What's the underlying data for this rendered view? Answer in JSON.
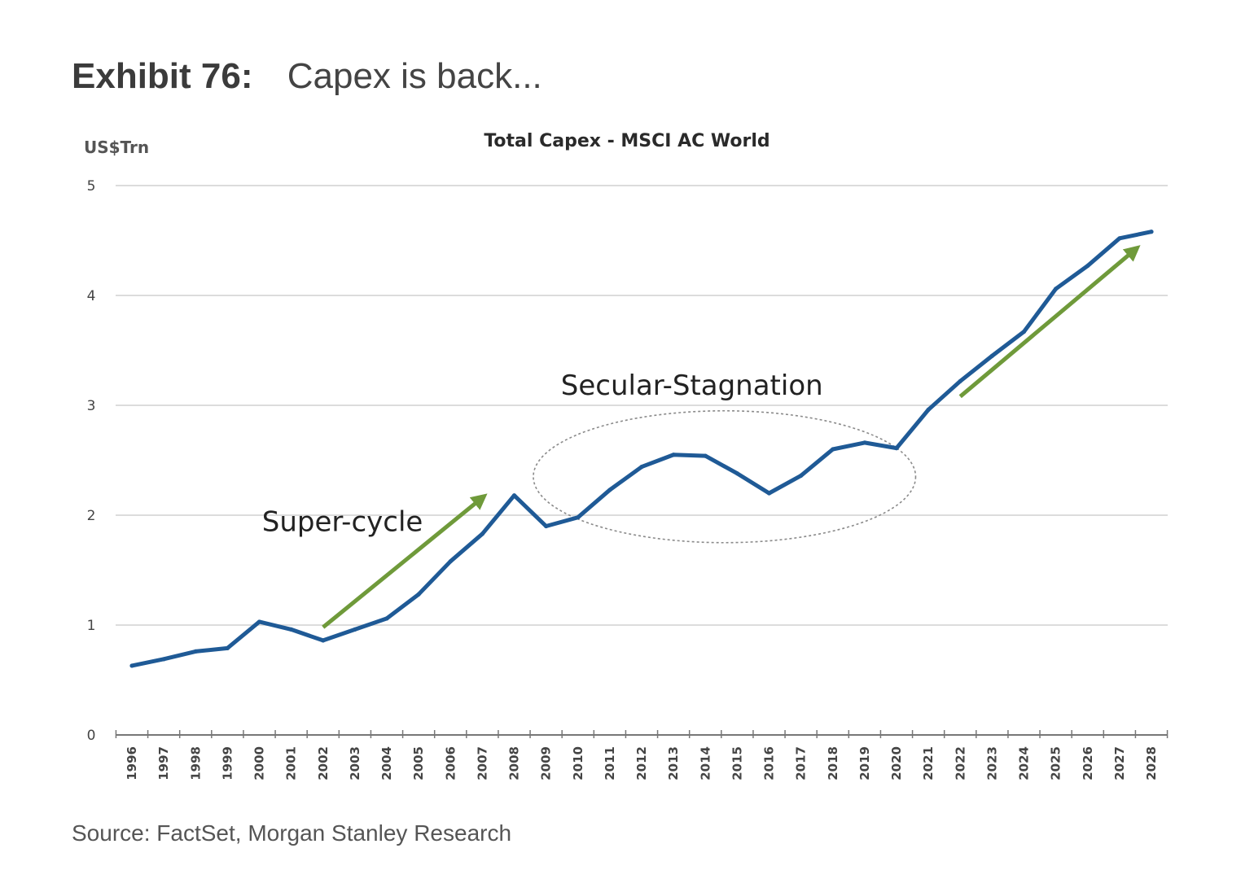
{
  "exhibit": {
    "label": "Exhibit 76:",
    "title": "Capex is back..."
  },
  "source": "Source: FactSet, Morgan Stanley Research",
  "colors": {
    "line": "#1f5a96",
    "arrow": "#6f9a3a",
    "grid": "#dcdcdc",
    "ellipse": "#8a8a8a"
  },
  "chart_data": {
    "type": "line",
    "title": "Total Capex - MSCI AC World",
    "ylabel": "US$Trn",
    "xlabel": "",
    "ylim": [
      0,
      5
    ],
    "yticks": [
      0,
      1,
      2,
      3,
      4,
      5
    ],
    "grid": true,
    "x": [
      "1996",
      "1997",
      "1998",
      "1999",
      "2000",
      "2001",
      "2002",
      "2003",
      "2004",
      "2005",
      "2006",
      "2007",
      "2008",
      "2009",
      "2010",
      "2011",
      "2012",
      "2013",
      "2014",
      "2015",
      "2016",
      "2017",
      "2018",
      "2019",
      "2020",
      "2021",
      "2022",
      "2023",
      "2024",
      "2025",
      "2026",
      "2027",
      "2028"
    ],
    "series": [
      {
        "values": [
          0.63,
          0.69,
          0.76,
          0.79,
          1.03,
          0.96,
          0.86,
          0.96,
          1.06,
          1.28,
          1.58,
          1.83,
          2.18,
          1.9,
          1.98,
          2.23,
          2.44,
          2.55,
          2.54,
          2.38,
          2.2,
          2.36,
          2.6,
          2.66,
          2.61,
          2.96,
          3.22,
          3.45,
          3.67,
          4.06,
          4.27,
          4.52,
          4.58
        ]
      }
    ],
    "annotations": [
      {
        "text": "Super-cycle",
        "type": "arrow",
        "from": [
          "2002",
          0.98
        ],
        "to": [
          "2007",
          2.16
        ]
      },
      {
        "text": "Secular-Stagnation",
        "type": "ellipse",
        "x_range": [
          "2008.6",
          "2020.6"
        ],
        "y_range": [
          1.75,
          2.95
        ]
      },
      {
        "text": "",
        "type": "arrow",
        "from": [
          "2022",
          3.08
        ],
        "to": [
          "2027.5",
          4.42
        ]
      }
    ]
  }
}
